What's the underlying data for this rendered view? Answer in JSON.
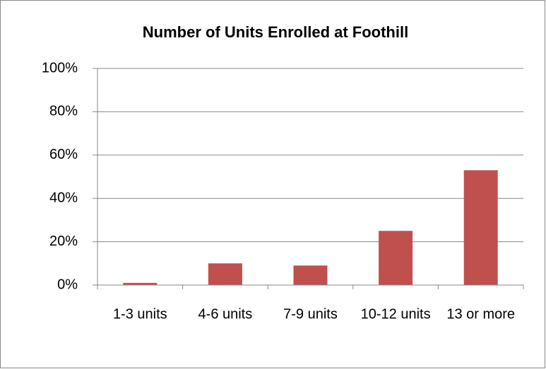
{
  "chart_data": {
    "type": "bar",
    "title": "Number of Units Enrolled at Foothill",
    "categories": [
      "1-3 units",
      "4-6 units",
      "7-9 units",
      "10-12 units",
      "13 or more"
    ],
    "values": [
      1,
      10,
      9,
      25,
      53
    ],
    "color": "#c0504d",
    "ylim": [
      0,
      100
    ],
    "yticks": [
      {
        "value": 0,
        "label": "0%"
      },
      {
        "value": 20,
        "label": "20%"
      },
      {
        "value": 40,
        "label": "40%"
      },
      {
        "value": 60,
        "label": "60%"
      },
      {
        "value": 80,
        "label": "80%"
      },
      {
        "value": 100,
        "label": "100%"
      }
    ],
    "grid": true
  }
}
